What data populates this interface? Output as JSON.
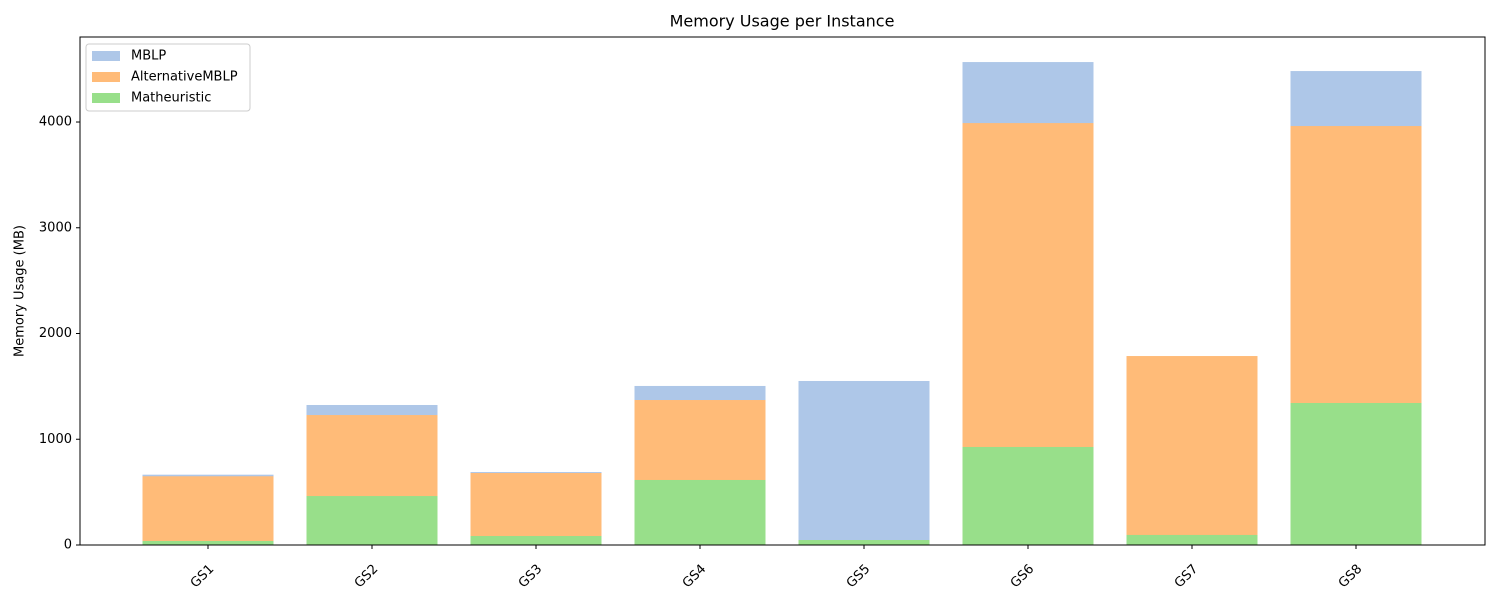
{
  "chart_data": {
    "type": "bar",
    "title": "Memory Usage per Instance",
    "y_label": "Memory Usage (MB)",
    "categories": [
      "GS1",
      "GS2",
      "GS3",
      "GS4",
      "GS5",
      "GS6",
      "GS7",
      "GS8"
    ],
    "series": [
      {
        "name": "MBLP",
        "color": "#aec7e8",
        "values": [
          665,
          1324,
          690,
          1504,
          1551,
          4567,
          null,
          4482
        ]
      },
      {
        "name": "AlternativeMBLP",
        "color": "#ffbb78",
        "values": [
          650,
          1229,
          681,
          1371,
          null,
          3990,
          1787,
          3962
        ]
      },
      {
        "name": "Matheuristic",
        "color": "#98df8a",
        "values": [
          38,
          463,
          85,
          615,
          47,
          927,
          95,
          1343
        ]
      }
    ],
    "ylim": [
      0,
      4804
    ],
    "yticks": [
      0,
      1000,
      2000,
      3000,
      4000
    ],
    "legend": "upper left",
    "overlap": true
  }
}
